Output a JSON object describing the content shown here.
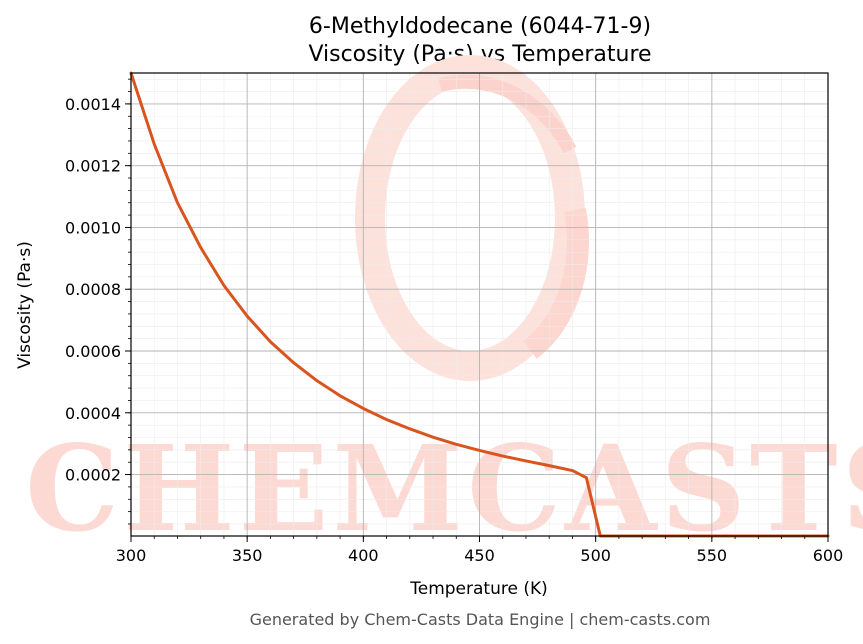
{
  "chart_data": {
    "type": "line",
    "title": "6-Methyldodecane (6044-71-9)",
    "subtitle": "Viscosity (Pa·s) vs Temperature",
    "xlabel": "Temperature (K)",
    "ylabel": "Viscosity (Pa·s)",
    "xlim": [
      300,
      600
    ],
    "ylim": [
      1.1e-06,
      0.0015
    ],
    "xticks": [
      300,
      350,
      400,
      450,
      500,
      550,
      600
    ],
    "xtick_labels": [
      "300",
      "350",
      "400",
      "450",
      "500",
      "550",
      "600"
    ],
    "yticks": [
      0.0002,
      0.0004,
      0.0006,
      0.0008,
      0.001,
      0.0012,
      0.0014
    ],
    "ytick_labels": [
      "0.0002",
      "0.0004",
      "0.0006",
      "0.0008",
      "0.0010",
      "0.0012",
      "0.0014"
    ],
    "grid": true,
    "series": [
      {
        "color": "#d9541e",
        "x": [
          300,
          310,
          320,
          330,
          340,
          350,
          360,
          370,
          380,
          390,
          400,
          410,
          420,
          430,
          440,
          450,
          460,
          470,
          480,
          490,
          496,
          502,
          510,
          550,
          600
        ],
        "y": [
          0.0015,
          0.00127,
          0.00108,
          0.000935,
          0.000812,
          0.000713,
          0.00063,
          0.000562,
          0.000504,
          0.000455,
          0.000414,
          0.000378,
          0.000348,
          0.000321,
          0.000298,
          0.000278,
          0.00026,
          0.000244,
          0.000229,
          0.000213,
          0.00019,
          1.1e-06,
          1.1e-06,
          1.1e-06,
          1.1e-06
        ]
      }
    ]
  },
  "watermark": "CHEMCASTS",
  "footer": "Generated by Chem-Casts Data Engine | chem-casts.com"
}
